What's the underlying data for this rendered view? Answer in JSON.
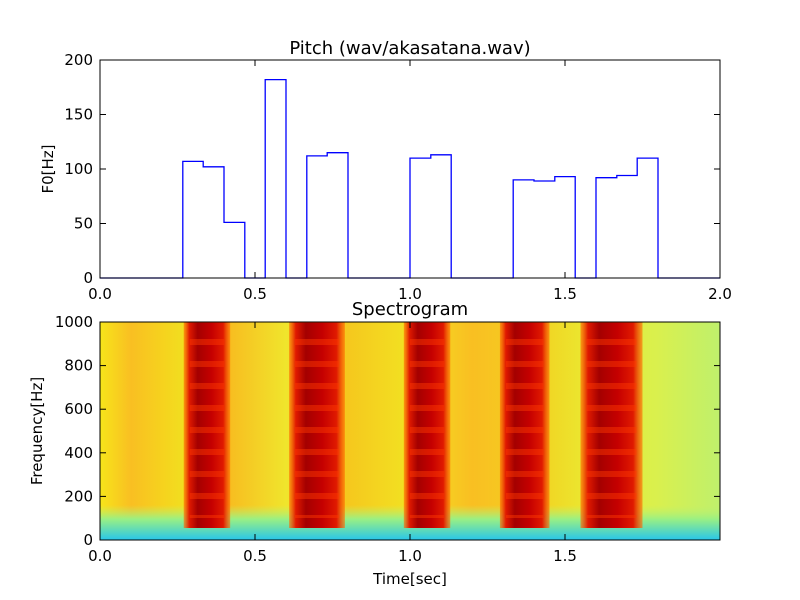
{
  "chart_data": [
    {
      "type": "line",
      "title": "Pitch (wav/akasatana.wav)",
      "xlabel": "",
      "ylabel": "F0[Hz]",
      "xlim": [
        0.0,
        2.0
      ],
      "ylim": [
        0,
        200
      ],
      "xticks": [
        "0.0",
        "0.5",
        "1.0",
        "1.5",
        "2.0"
      ],
      "yticks": [
        "0",
        "50",
        "100",
        "150",
        "200"
      ],
      "line_color": "#0000ff",
      "step": true,
      "x": [
        0.0,
        0.267,
        0.267,
        0.333,
        0.333,
        0.4,
        0.4,
        0.467,
        0.467,
        0.533,
        0.533,
        0.6,
        0.6,
        0.667,
        0.667,
        0.733,
        0.733,
        0.8,
        0.8,
        1.0,
        1.0,
        1.067,
        1.067,
        1.133,
        1.133,
        1.333,
        1.333,
        1.4,
        1.4,
        1.467,
        1.467,
        1.533,
        1.533,
        1.6,
        1.6,
        1.667,
        1.667,
        1.733,
        1.733,
        1.8,
        1.8,
        2.0
      ],
      "y": [
        0,
        0,
        107,
        107,
        102,
        102,
        51,
        51,
        0,
        0,
        182,
        182,
        0,
        0,
        112,
        112,
        115,
        115,
        0,
        0,
        110,
        110,
        113,
        113,
        0,
        0,
        90,
        90,
        89,
        89,
        93,
        93,
        0,
        0,
        92,
        92,
        94,
        94,
        110,
        110,
        0,
        0
      ]
    },
    {
      "type": "heatmap",
      "title": "Spectrogram",
      "xlabel": "Time[sec]",
      "ylabel": "Frequency[Hz]",
      "xlim": [
        0.0,
        2.0
      ],
      "ylim": [
        0,
        1000
      ],
      "xticks": [
        "0.0",
        "0.5",
        "1.0",
        "1.5"
      ],
      "yticks": [
        "0",
        "200",
        "400",
        "600",
        "800",
        "1000"
      ],
      "colormap": "jet",
      "voiced_segments_sec": [
        [
          0.27,
          0.42
        ],
        [
          0.61,
          0.79
        ],
        [
          0.98,
          1.13
        ],
        [
          1.29,
          1.45
        ],
        [
          1.55,
          1.75
        ]
      ]
    }
  ]
}
